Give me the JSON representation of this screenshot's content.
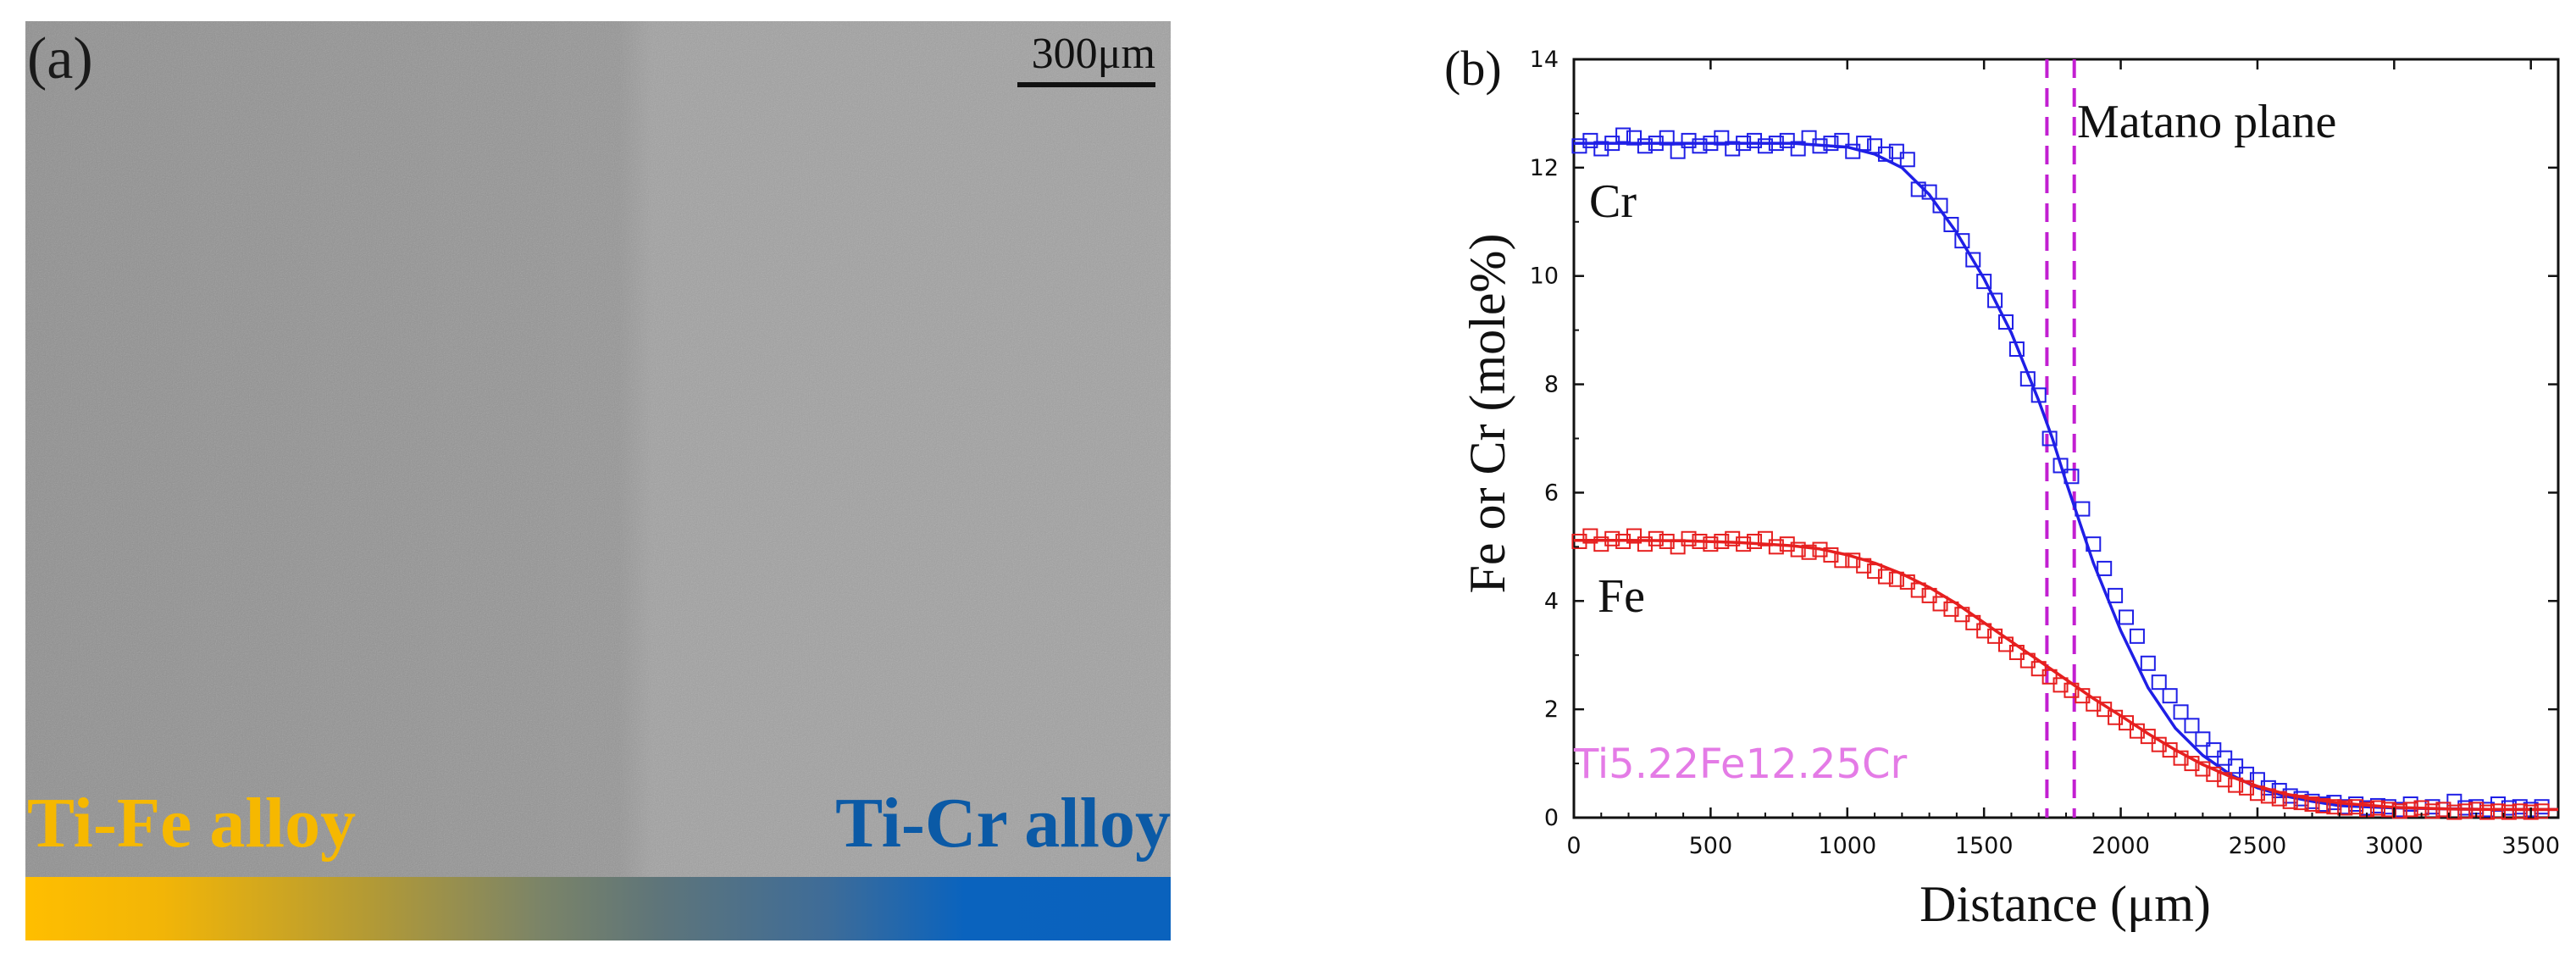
{
  "panel_a": {
    "label": "(a)",
    "scale_bar_label": "300μm",
    "left_alloy": "Ti-Fe alloy",
    "right_alloy": "Ti-Cr alloy",
    "colors": {
      "left": "#ffbe00",
      "right": "#0a62bd",
      "background": "#959595"
    }
  },
  "chart_data": {
    "type": "scatter",
    "panel_label": "(b)",
    "xlabel": "Distance (μm)",
    "ylabel": "Fe or Cr (mole%)",
    "xlim": [
      0,
      3600
    ],
    "ylim": [
      0,
      14
    ],
    "xticks": [
      0,
      500,
      1000,
      1500,
      2000,
      2500,
      3000,
      3500
    ],
    "yticks": [
      0,
      2,
      4,
      6,
      8,
      10,
      12,
      14
    ],
    "annotations": {
      "cr_label": "Cr",
      "fe_label": "Fe",
      "matano_label": "Matano plane",
      "alloy_label": "Ti5.22Fe12.25Cr"
    },
    "matano_lines_x": [
      1730,
      1830
    ],
    "series": [
      {
        "name": "Cr",
        "color": "#1f1fe6",
        "marker": "square",
        "fit": {
          "x": [
            0,
            200,
            400,
            600,
            800,
            1000,
            1100,
            1200,
            1300,
            1400,
            1500,
            1600,
            1700,
            1750,
            1800,
            1850,
            1900,
            2000,
            2100,
            2200,
            2300,
            2400,
            2500,
            2600,
            2700,
            2800,
            3000,
            3200,
            3400,
            3600
          ],
          "y": [
            12.45,
            12.45,
            12.45,
            12.45,
            12.45,
            12.38,
            12.25,
            12.0,
            11.5,
            10.8,
            9.95,
            8.95,
            7.7,
            7.0,
            6.2,
            5.45,
            4.7,
            3.45,
            2.4,
            1.65,
            1.15,
            0.8,
            0.55,
            0.4,
            0.3,
            0.22,
            0.18,
            0.16,
            0.15,
            0.15
          ]
        },
        "points": {
          "x": [
            20,
            60,
            100,
            140,
            180,
            220,
            260,
            300,
            340,
            380,
            420,
            460,
            500,
            540,
            580,
            620,
            660,
            700,
            740,
            780,
            820,
            860,
            900,
            940,
            980,
            1020,
            1060,
            1100,
            1140,
            1180,
            1220,
            1260,
            1300,
            1340,
            1380,
            1420,
            1460,
            1500,
            1540,
            1580,
            1620,
            1660,
            1700,
            1740,
            1780,
            1820,
            1860,
            1900,
            1940,
            1980,
            2020,
            2060,
            2100,
            2140,
            2180,
            2220,
            2260,
            2300,
            2340,
            2380,
            2420,
            2460,
            2500,
            2540,
            2580,
            2620,
            2660,
            2700,
            2740,
            2780,
            2820,
            2860,
            2900,
            2940,
            2980,
            3020,
            3060,
            3100,
            3140,
            3180,
            3220,
            3260,
            3300,
            3340,
            3380,
            3420,
            3460,
            3500,
            3540
          ],
          "y": [
            12.4,
            12.5,
            12.35,
            12.45,
            12.6,
            12.55,
            12.4,
            12.45,
            12.55,
            12.3,
            12.5,
            12.4,
            12.45,
            12.55,
            12.35,
            12.45,
            12.5,
            12.4,
            12.45,
            12.5,
            12.35,
            12.55,
            12.4,
            12.45,
            12.5,
            12.3,
            12.45,
            12.4,
            12.25,
            12.3,
            12.15,
            11.6,
            11.55,
            11.3,
            10.95,
            10.65,
            10.3,
            9.9,
            9.55,
            9.15,
            8.65,
            8.1,
            7.8,
            7.0,
            6.5,
            6.3,
            5.7,
            5.05,
            4.6,
            4.1,
            3.7,
            3.35,
            2.85,
            2.5,
            2.25,
            1.95,
            1.7,
            1.45,
            1.25,
            1.1,
            0.95,
            0.8,
            0.7,
            0.55,
            0.5,
            0.4,
            0.35,
            0.3,
            0.25,
            0.28,
            0.2,
            0.25,
            0.18,
            0.22,
            0.2,
            0.15,
            0.25,
            0.18,
            0.2,
            0.15,
            0.3,
            0.18,
            0.2,
            0.15,
            0.25,
            0.18,
            0.2,
            0.15,
            0.2
          ]
        }
      },
      {
        "name": "Fe",
        "color": "#e61f1f",
        "marker": "square",
        "fit": {
          "x": [
            0,
            200,
            400,
            600,
            800,
            900,
            1000,
            1100,
            1200,
            1300,
            1400,
            1500,
            1600,
            1700,
            1800,
            1900,
            2000,
            2100,
            2200,
            2300,
            2400,
            2500,
            2600,
            2700,
            2800,
            3000,
            3200,
            3400,
            3600
          ],
          "y": [
            5.12,
            5.12,
            5.11,
            5.08,
            5.02,
            4.96,
            4.85,
            4.7,
            4.5,
            4.25,
            3.95,
            3.6,
            3.25,
            2.9,
            2.55,
            2.2,
            1.88,
            1.55,
            1.25,
            0.98,
            0.76,
            0.58,
            0.44,
            0.34,
            0.27,
            0.19,
            0.16,
            0.15,
            0.15
          ]
        },
        "points": {
          "x": [
            20,
            60,
            100,
            140,
            180,
            220,
            260,
            300,
            340,
            380,
            420,
            460,
            500,
            540,
            580,
            620,
            660,
            700,
            740,
            780,
            820,
            860,
            900,
            940,
            980,
            1020,
            1060,
            1100,
            1140,
            1180,
            1220,
            1260,
            1300,
            1340,
            1380,
            1420,
            1460,
            1500,
            1540,
            1580,
            1620,
            1660,
            1700,
            1740,
            1780,
            1820,
            1860,
            1900,
            1940,
            1980,
            2020,
            2060,
            2100,
            2140,
            2180,
            2220,
            2260,
            2300,
            2340,
            2380,
            2420,
            2460,
            2500,
            2540,
            2580,
            2620,
            2660,
            2700,
            2740,
            2780,
            2820,
            2860,
            2900,
            2940,
            2980,
            3020,
            3060,
            3100,
            3140,
            3180,
            3220,
            3260,
            3300,
            3340,
            3380,
            3420,
            3460,
            3500,
            3540
          ],
          "y": [
            5.1,
            5.2,
            5.05,
            5.15,
            5.1,
            5.2,
            5.05,
            5.15,
            5.1,
            5.0,
            5.15,
            5.1,
            5.05,
            5.1,
            5.15,
            5.05,
            5.1,
            5.15,
            5.0,
            5.05,
            4.95,
            4.9,
            4.95,
            4.85,
            4.75,
            4.75,
            4.65,
            4.55,
            4.45,
            4.4,
            4.35,
            4.2,
            4.1,
            3.95,
            3.85,
            3.75,
            3.6,
            3.45,
            3.35,
            3.2,
            3.05,
            2.9,
            2.75,
            2.6,
            2.45,
            2.35,
            2.25,
            2.1,
            2.0,
            1.85,
            1.75,
            1.6,
            1.5,
            1.35,
            1.25,
            1.1,
            1.0,
            0.9,
            0.8,
            0.7,
            0.6,
            0.55,
            0.45,
            0.4,
            0.35,
            0.3,
            0.28,
            0.25,
            0.22,
            0.2,
            0.18,
            0.2,
            0.15,
            0.18,
            0.15,
            0.12,
            0.15,
            0.18,
            0.12,
            0.15,
            0.1,
            0.12,
            0.15,
            0.1,
            0.12,
            0.1,
            0.12,
            0.1,
            0.12
          ]
        }
      }
    ],
    "colors": {
      "matano": "#c21fd1",
      "axis": "#111111"
    }
  }
}
